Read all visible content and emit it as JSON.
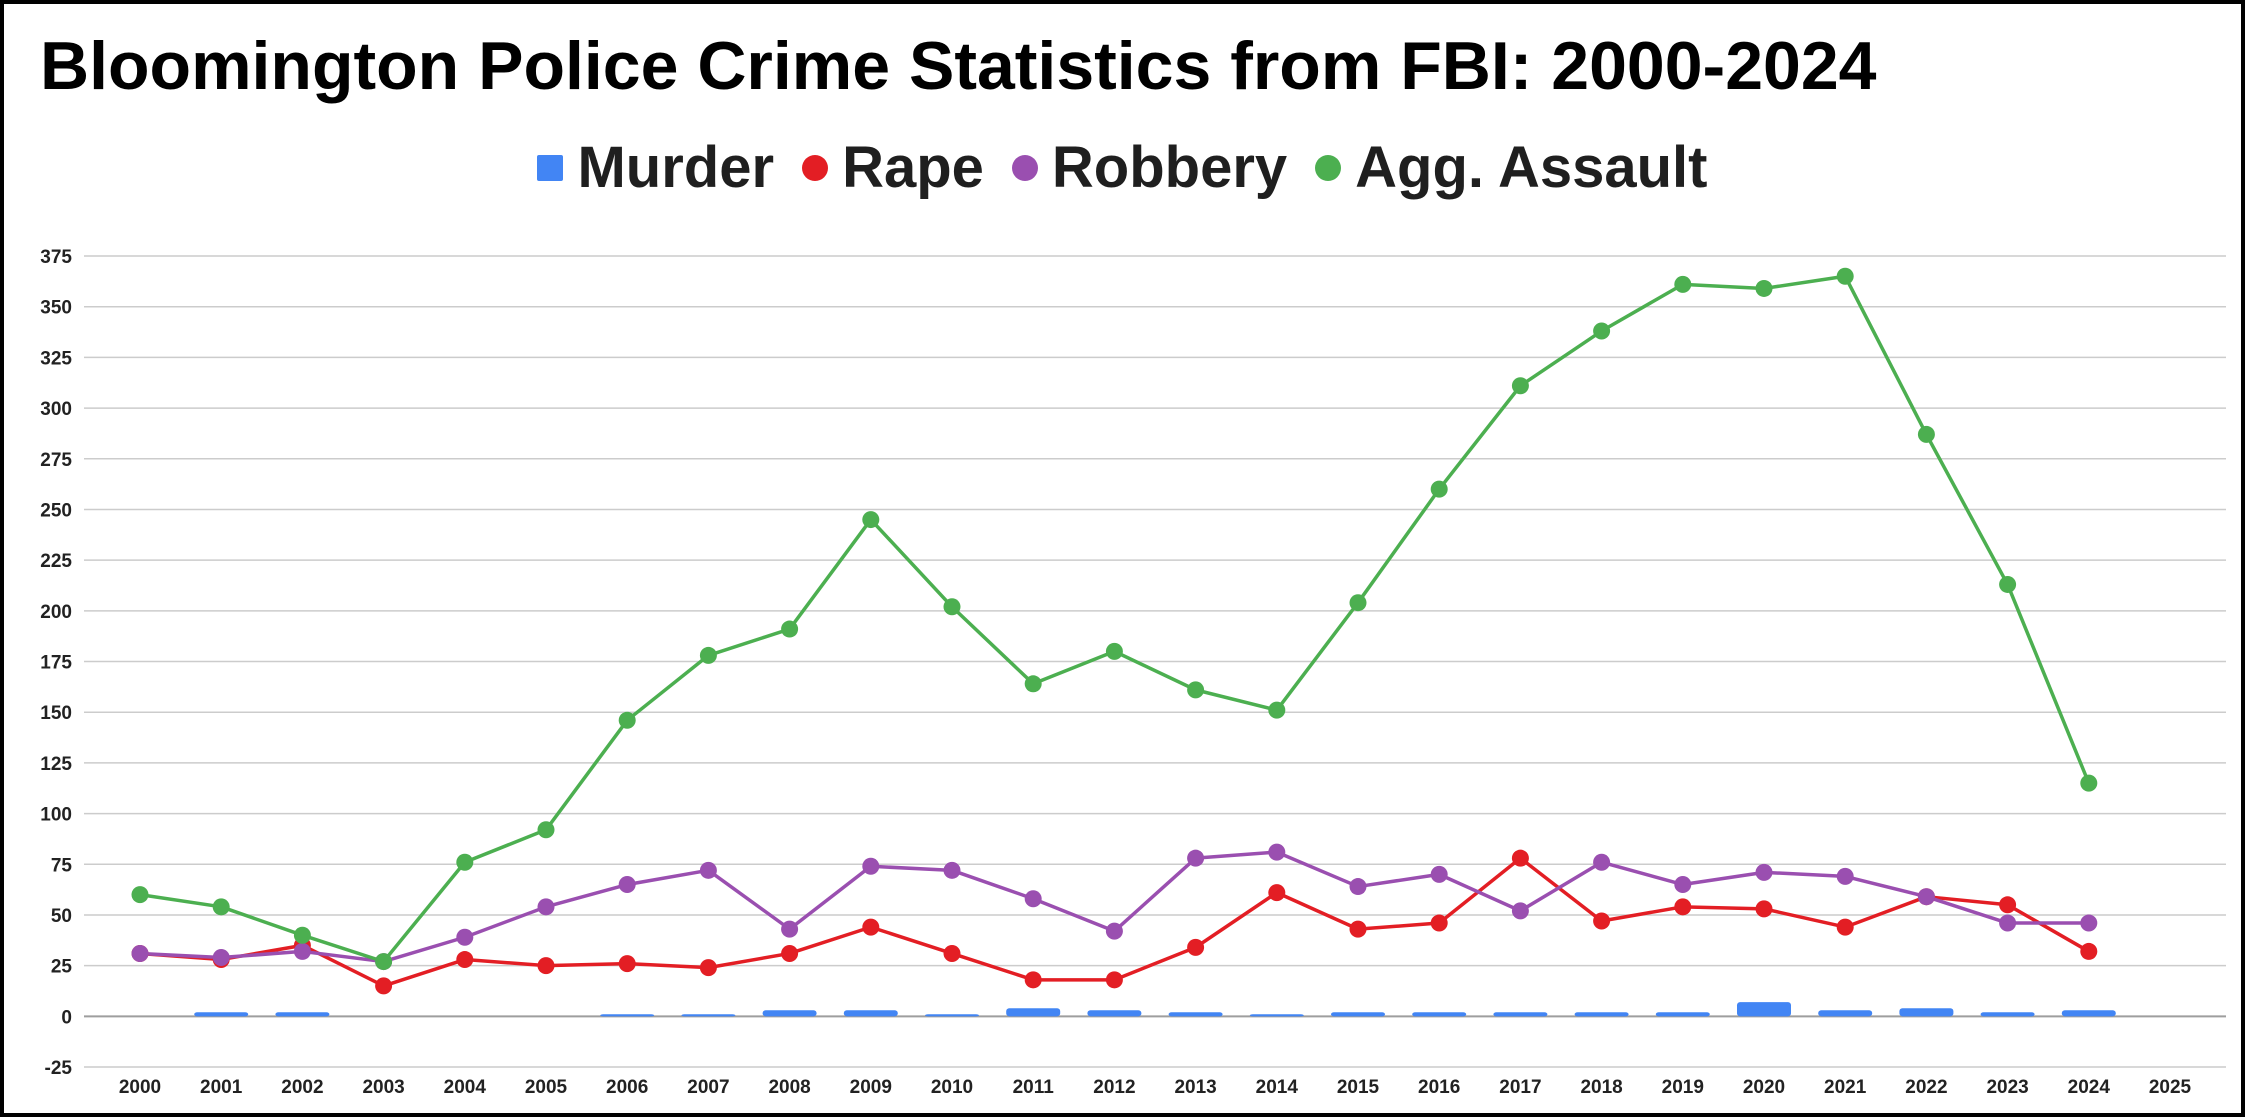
{
  "chart_data": {
    "type": "line",
    "title": "Bloomington Police Crime Statistics from FBI: 2000-2024",
    "legend_position": "top",
    "grid": true,
    "ylim": [
      -25,
      375
    ],
    "yticks": [
      -25,
      0,
      25,
      50,
      75,
      100,
      125,
      150,
      175,
      200,
      225,
      250,
      275,
      300,
      325,
      350,
      375
    ],
    "categories": [
      "2000",
      "2001",
      "2002",
      "2003",
      "2004",
      "2005",
      "2006",
      "2007",
      "2008",
      "2009",
      "2010",
      "2011",
      "2012",
      "2013",
      "2014",
      "2015",
      "2016",
      "2017",
      "2018",
      "2019",
      "2020",
      "2021",
      "2022",
      "2023",
      "2024",
      "2025"
    ],
    "series": [
      {
        "name": "Murder",
        "kind": "bar",
        "color": "#4285f4",
        "values": [
          0,
          2,
          2,
          0,
          0,
          0,
          1,
          1,
          3,
          3,
          1,
          4,
          3,
          2,
          1,
          2,
          2,
          2,
          2,
          2,
          7,
          3,
          4,
          2,
          3,
          null
        ]
      },
      {
        "name": "Rape",
        "kind": "line",
        "color": "#e31e24",
        "values": [
          31,
          28,
          35,
          15,
          28,
          25,
          26,
          24,
          31,
          44,
          31,
          18,
          18,
          34,
          61,
          43,
          46,
          78,
          47,
          54,
          53,
          44,
          59,
          55,
          32,
          null
        ]
      },
      {
        "name": "Robbery",
        "kind": "line",
        "color": "#9a4fb0",
        "values": [
          31,
          29,
          32,
          27,
          39,
          54,
          65,
          72,
          43,
          74,
          72,
          58,
          42,
          78,
          81,
          64,
          70,
          52,
          76,
          65,
          71,
          69,
          59,
          46,
          46,
          null
        ]
      },
      {
        "name": "Agg. Assault",
        "kind": "line",
        "color": "#4caf50",
        "values": [
          60,
          54,
          40,
          27,
          76,
          92,
          146,
          178,
          191,
          245,
          202,
          164,
          180,
          161,
          151,
          204,
          260,
          311,
          338,
          361,
          359,
          365,
          287,
          213,
          115,
          null
        ]
      }
    ]
  }
}
